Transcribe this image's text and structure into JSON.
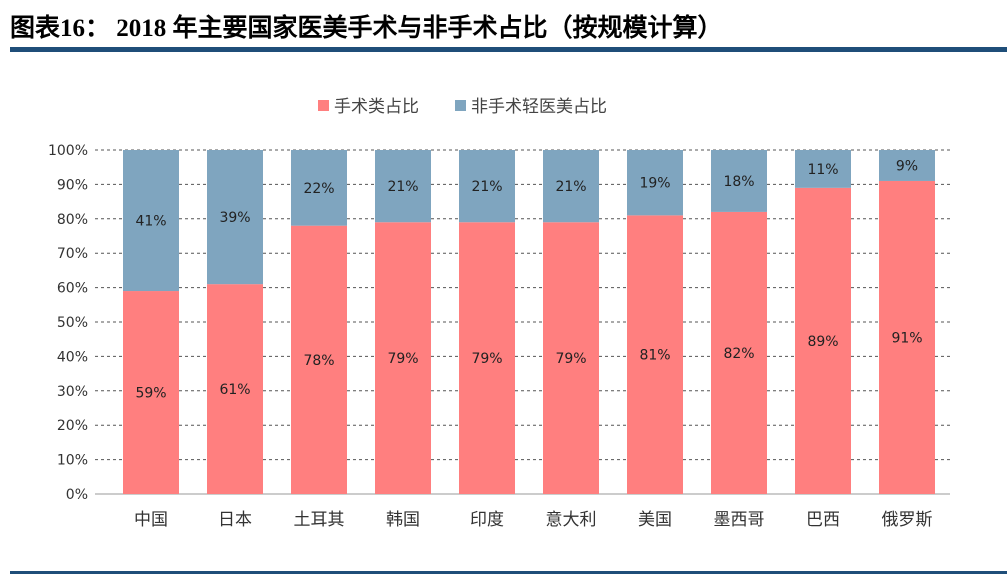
{
  "header": {
    "title": "图表16：  2018 年主要国家医美手术与非手术占比（按规模计算）"
  },
  "chart_data": {
    "type": "bar",
    "stacked": true,
    "categories": [
      "中国",
      "日本",
      "土耳其",
      "韩国",
      "印度",
      "意大利",
      "美国",
      "墨西哥",
      "巴西",
      "俄罗斯"
    ],
    "series": [
      {
        "name": "手术类占比",
        "color": "#FF7F7F",
        "values": [
          59,
          61,
          78,
          79,
          79,
          79,
          81,
          82,
          89,
          91
        ],
        "labels": [
          "59%",
          "61%",
          "78%",
          "79%",
          "79%",
          "79%",
          "81%",
          "82%",
          "89%",
          "91%"
        ]
      },
      {
        "name": "非手术轻医美占比",
        "color": "#7FA5BF",
        "values": [
          41,
          39,
          22,
          21,
          21,
          21,
          19,
          18,
          11,
          9
        ],
        "labels": [
          "41%",
          "39%",
          "22%",
          "21%",
          "21%",
          "21%",
          "19%",
          "18%",
          "11%",
          "9%"
        ]
      }
    ],
    "ylim": [
      0,
      100
    ],
    "yticks": [
      "0%",
      "10%",
      "20%",
      "30%",
      "40%",
      "50%",
      "60%",
      "70%",
      "80%",
      "90%",
      "100%"
    ],
    "grid": "horizontal dashed",
    "legend": "top"
  }
}
